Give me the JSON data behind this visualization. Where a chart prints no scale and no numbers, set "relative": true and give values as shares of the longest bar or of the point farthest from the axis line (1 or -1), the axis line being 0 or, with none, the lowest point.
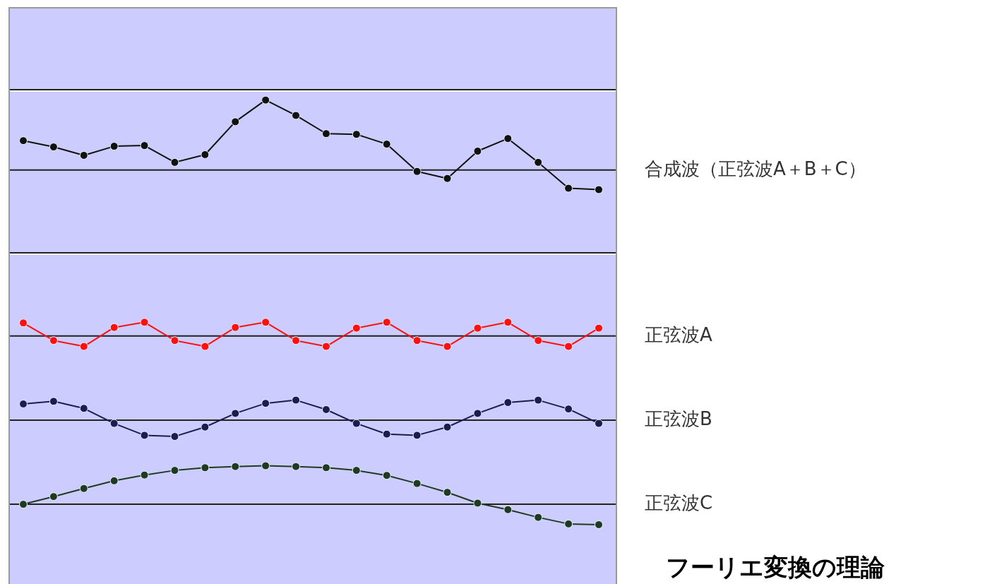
{
  "chart_data": [
    {
      "type": "line",
      "relative": true,
      "marker": "circle",
      "categories": [
        null,
        null,
        null,
        null,
        null,
        null,
        null,
        null,
        null,
        null,
        null,
        null,
        null,
        null,
        null,
        null,
        null,
        null,
        null,
        null
      ],
      "series": [
        {
          "name": "合成波（正弦波A＋B＋C）",
          "color": "#111111",
          "values": [
            0.42,
            0.33,
            0.21,
            0.34,
            0.35,
            0.11,
            0.22,
            0.69,
            1,
            0.78,
            0.52,
            0.51,
            0.37,
            -0.02,
            -0.12,
            0.27,
            0.45,
            0.11,
            -0.26,
            -0.28
          ]
        }
      ]
    },
    {
      "type": "line",
      "relative": true,
      "marker": "circle",
      "categories": [
        null,
        null,
        null,
        null,
        null,
        null,
        null,
        null,
        null,
        null,
        null,
        null,
        null,
        null,
        null,
        null,
        null,
        null,
        null,
        null
      ],
      "series": [
        {
          "name": "正弦波A",
          "color": "#ff1010",
          "values": [
            0.95,
            -0.33,
            -0.76,
            0.62,
            1,
            -0.33,
            -0.76,
            0.62,
            1,
            -0.33,
            -0.76,
            0.57,
            1,
            -0.33,
            -0.76,
            0.57,
            1,
            -0.33,
            -0.76,
            0.57
          ]
        }
      ]
    },
    {
      "type": "line",
      "relative": true,
      "marker": "circle",
      "categories": [
        null,
        null,
        null,
        null,
        null,
        null,
        null,
        null,
        null,
        null,
        null,
        null,
        null,
        null,
        null,
        null,
        null,
        null,
        null,
        null
      ],
      "series": [
        {
          "name": "正弦波B",
          "color": "#1c1c50",
          "values": [
            0.81,
            0.94,
            0.59,
            -0.16,
            -0.75,
            -0.81,
            -0.34,
            0.34,
            0.84,
            1,
            0.53,
            -0.16,
            -0.69,
            -0.75,
            -0.34,
            0.34,
            0.88,
            1,
            0.56,
            -0.16
          ]
        }
      ]
    },
    {
      "type": "line",
      "relative": true,
      "marker": "circle",
      "categories": [
        null,
        null,
        null,
        null,
        null,
        null,
        null,
        null,
        null,
        null,
        null,
        null,
        null,
        null,
        null,
        null,
        null,
        null,
        null,
        null
      ],
      "series": [
        {
          "name": "正弦波C",
          "color": "#1f3a22",
          "values": [
            0,
            0.2,
            0.41,
            0.61,
            0.76,
            0.88,
            0.95,
            0.98,
            1,
            0.98,
            0.95,
            0.88,
            0.75,
            0.54,
            0.31,
            0.03,
            -0.14,
            -0.34,
            -0.51,
            -0.53
          ]
        }
      ],
      "annotations": [
        "フーリエ変換の理論"
      ]
    }
  ]
}
